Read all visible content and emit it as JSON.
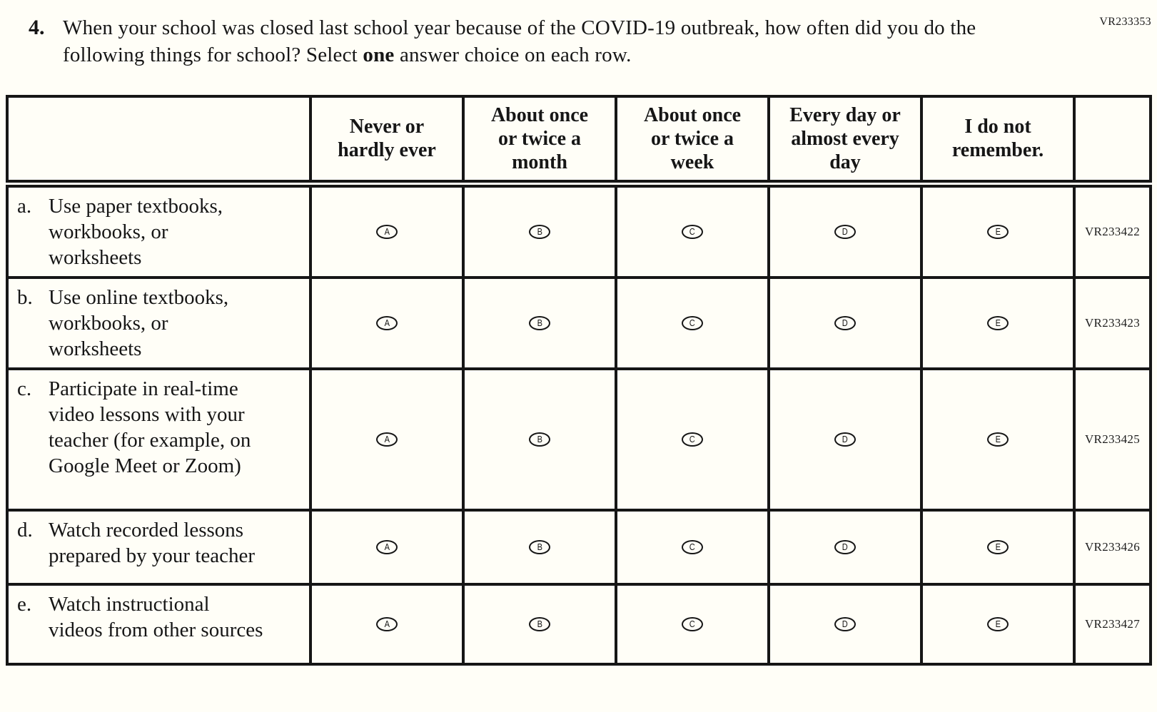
{
  "page": {
    "form_code": "VR233353",
    "colors": {
      "paper": "#fffef7",
      "ink": "#161616"
    }
  },
  "question": {
    "number": "4.",
    "text_before_bold": "When your school was closed last school year because of the COVID-19 outbreak, how often did you do the following things for school? Select ",
    "bold_word": "one",
    "text_after_bold": " answer choice on each row."
  },
  "table": {
    "columns": [
      "Never or hardly ever",
      "About once or twice a month",
      "About once or twice a week",
      "Every day or almost every day",
      "I do not remember."
    ],
    "options": [
      "A",
      "B",
      "C",
      "D",
      "E"
    ],
    "rows": [
      {
        "letter": "a.",
        "label": "Use paper textbooks, workbooks, or worksheets",
        "code": "VR233422"
      },
      {
        "letter": "b.",
        "label": "Use online textbooks, workbooks, or worksheets",
        "code": "VR233423"
      },
      {
        "letter": "c.",
        "label": "Participate in real-time video lessons with your teacher (for example, on Google Meet or Zoom)",
        "code": "VR233425"
      },
      {
        "letter": "d.",
        "label": "Watch recorded lessons prepared by your teacher",
        "code": "VR233426"
      },
      {
        "letter": "e.",
        "label": "Watch instructional videos from other sources",
        "code": "VR233427"
      }
    ]
  }
}
